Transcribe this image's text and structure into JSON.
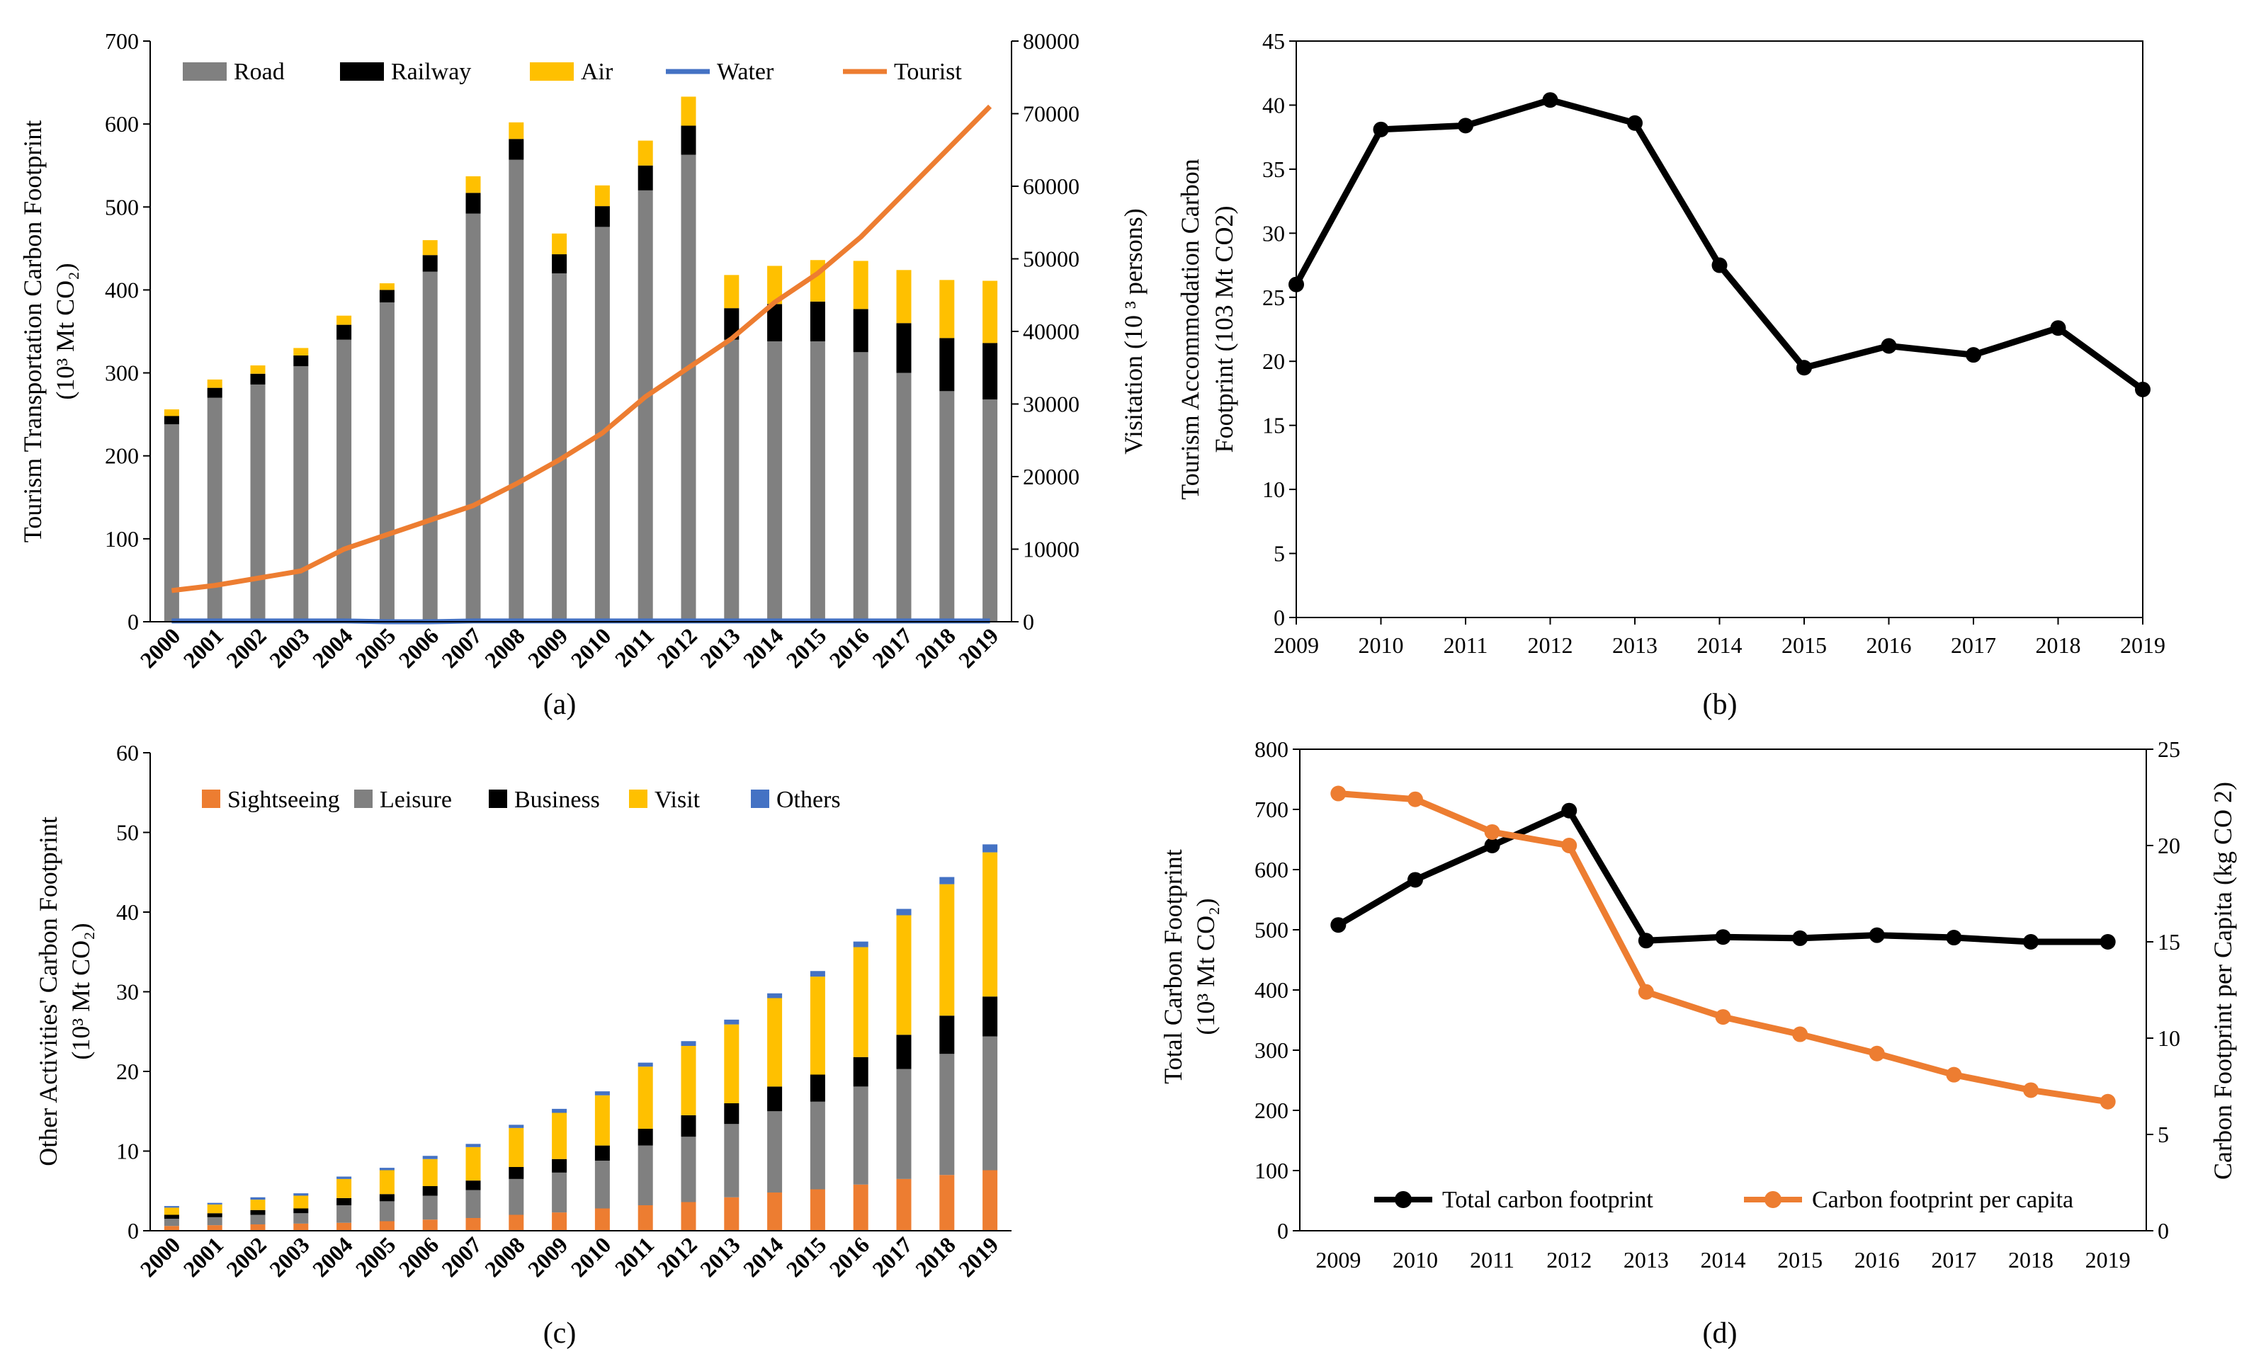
{
  "chart_data": [
    {
      "id": "a",
      "type": "bar",
      "stacked": true,
      "caption": "(a)",
      "ylabel": "Tourism Transportation Carbon Footprint",
      "ylabel_unit": "(10³ Mt CO₂)",
      "y2label": "Visitation (10 ³ persons)",
      "ylim": [
        0,
        700
      ],
      "yticks": [
        0,
        100,
        200,
        300,
        400,
        500,
        600,
        700
      ],
      "y2lim": [
        0,
        80000
      ],
      "y2ticks": [
        0,
        10000,
        20000,
        30000,
        40000,
        50000,
        60000,
        70000,
        80000
      ],
      "categories": [
        "2000",
        "2001",
        "2002",
        "2003",
        "2004",
        "2005",
        "2006",
        "2007",
        "2008",
        "2009",
        "2010",
        "2011",
        "2012",
        "2013",
        "2014",
        "2015",
        "2016",
        "2017",
        "2018",
        "2019"
      ],
      "series": [
        {
          "name": "Road",
          "kind": "bar",
          "color": "#808080",
          "values": [
            238,
            270,
            286,
            308,
            340,
            385,
            422,
            492,
            557,
            420,
            476,
            520,
            563,
            340,
            338,
            338,
            325,
            300,
            278,
            268
          ]
        },
        {
          "name": "Railway",
          "kind": "bar",
          "color": "#000000",
          "values": [
            10,
            12,
            13,
            13,
            18,
            15,
            20,
            25,
            25,
            23,
            25,
            30,
            35,
            38,
            45,
            48,
            52,
            60,
            64,
            68
          ]
        },
        {
          "name": "Air",
          "kind": "bar",
          "color": "#FFC000",
          "values": [
            8,
            10,
            10,
            9,
            11,
            8,
            18,
            20,
            20,
            25,
            25,
            30,
            35,
            40,
            46,
            50,
            58,
            64,
            70,
            75
          ]
        },
        {
          "name": "Water",
          "kind": "line",
          "axis": "left",
          "color": "#4472C4",
          "values": [
            1,
            1,
            1,
            1,
            1,
            0,
            0,
            1,
            1,
            1,
            1,
            1,
            1,
            1,
            1,
            1,
            1,
            1,
            1,
            1
          ]
        },
        {
          "name": "Tourist",
          "kind": "line",
          "axis": "right",
          "color": "#ED7D31",
          "values": [
            4300,
            5000,
            6000,
            7000,
            10000,
            12000,
            14000,
            16000,
            19000,
            22300,
            26000,
            31000,
            35000,
            39000,
            44000,
            48000,
            53000,
            59000,
            65000,
            71000
          ]
        }
      ]
    },
    {
      "id": "b",
      "type": "line",
      "caption": "(b)",
      "ylabel": "Tourism Accommodation Carbon",
      "ylabel_line2": "Footprint (103 Mt CO2)",
      "ylim": [
        0,
        45
      ],
      "yticks": [
        0,
        5,
        10,
        15,
        20,
        25,
        30,
        35,
        40,
        45
      ],
      "x": [
        "2009",
        "2010",
        "2011",
        "2012",
        "2013",
        "2014",
        "2015",
        "2016",
        "2017",
        "2018",
        "2019"
      ],
      "series": [
        {
          "name": "Accommodation",
          "color": "#000000",
          "values": [
            26,
            38.1,
            38.4,
            40.4,
            38.6,
            27.5,
            19.5,
            21.2,
            20.5,
            22.6,
            17.8
          ]
        }
      ]
    },
    {
      "id": "c",
      "type": "bar",
      "stacked": true,
      "caption": "(c)",
      "ylabel": "Other Activities' Carbon Footprint",
      "ylabel_unit": "(10³ Mt CO₂)",
      "ylim": [
        0,
        60
      ],
      "yticks": [
        0,
        10,
        20,
        30,
        40,
        50,
        60
      ],
      "categories": [
        "2000",
        "2001",
        "2002",
        "2003",
        "2004",
        "2005",
        "2006",
        "2007",
        "2008",
        "2009",
        "2010",
        "2011",
        "2012",
        "2013",
        "2014",
        "2015",
        "2016",
        "2017",
        "2018",
        "2019"
      ],
      "series": [
        {
          "name": "Sightseeing",
          "color": "#ED7D31",
          "values": [
            0.6,
            0.7,
            0.8,
            0.9,
            1.0,
            1.2,
            1.4,
            1.6,
            2.0,
            2.3,
            2.8,
            3.2,
            3.6,
            4.2,
            4.8,
            5.2,
            5.8,
            6.5,
            7.0,
            7.6
          ]
        },
        {
          "name": "Leisure",
          "color": "#808080",
          "values": [
            0.9,
            1.0,
            1.2,
            1.3,
            2.2,
            2.5,
            3.0,
            3.5,
            4.5,
            5.0,
            6.0,
            7.5,
            8.2,
            9.2,
            10.2,
            11.0,
            12.3,
            13.8,
            15.2,
            16.8
          ]
        },
        {
          "name": "Business",
          "color": "#000000",
          "values": [
            0.5,
            0.5,
            0.6,
            0.6,
            0.9,
            0.9,
            1.2,
            1.2,
            1.5,
            1.7,
            1.9,
            2.1,
            2.7,
            2.6,
            3.1,
            3.4,
            3.7,
            4.3,
            4.8,
            5.0
          ]
        },
        {
          "name": "Visit",
          "color": "#FFC000",
          "values": [
            0.9,
            1.1,
            1.3,
            1.6,
            2.4,
            3.0,
            3.4,
            4.2,
            4.9,
            5.8,
            6.3,
            7.8,
            8.7,
            9.9,
            11.1,
            12.3,
            13.8,
            15.0,
            16.5,
            18.1
          ]
        },
        {
          "name": "Others",
          "color": "#4472C4",
          "values": [
            0.2,
            0.2,
            0.3,
            0.3,
            0.3,
            0.3,
            0.4,
            0.4,
            0.4,
            0.5,
            0.5,
            0.5,
            0.6,
            0.6,
            0.6,
            0.7,
            0.7,
            0.8,
            0.9,
            1.0
          ]
        }
      ]
    },
    {
      "id": "d",
      "type": "line",
      "caption": "(d)",
      "ylabel": "Total Carbon Footprint",
      "ylabel_unit": "(10³ Mt CO₂)",
      "y2label": "Carbon Footprint per Capita (kg CO 2)",
      "ylim": [
        0,
        800
      ],
      "yticks": [
        0,
        100,
        200,
        300,
        400,
        500,
        600,
        700,
        800
      ],
      "y2lim": [
        0,
        25
      ],
      "y2ticks": [
        0,
        5,
        10,
        15,
        20,
        25
      ],
      "x": [
        "2009",
        "2010",
        "2011",
        "2012",
        "2013",
        "2014",
        "2015",
        "2016",
        "2017",
        "2018",
        "2019"
      ],
      "series": [
        {
          "name": "Total carbon footprint",
          "axis": "left",
          "color": "#000000",
          "values": [
            508,
            583,
            640,
            698,
            482,
            488,
            486,
            491,
            487,
            480,
            480
          ]
        },
        {
          "name": "Carbon footprint per capita",
          "axis": "right",
          "color": "#ED7D31",
          "values": [
            22.7,
            22.4,
            20.7,
            20.0,
            12.4,
            11.1,
            10.2,
            9.2,
            8.1,
            7.3,
            6.7
          ]
        }
      ]
    }
  ]
}
